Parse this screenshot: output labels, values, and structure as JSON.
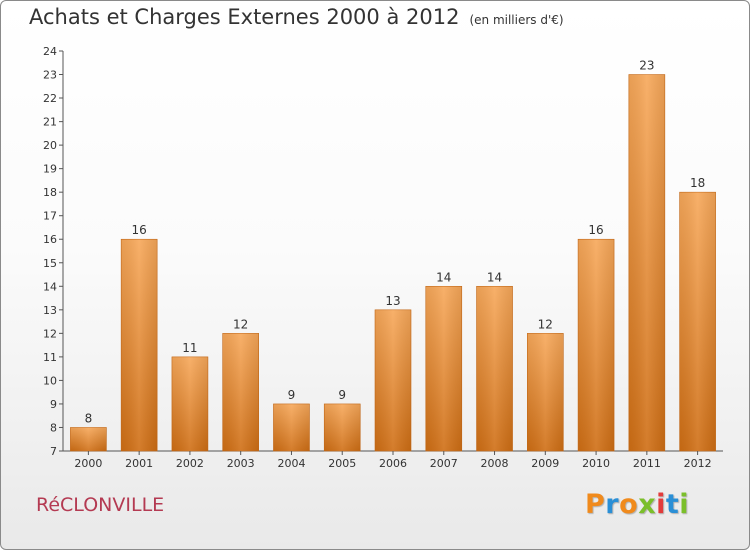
{
  "title": {
    "main": "Achats et Charges Externes 2000 à 2012",
    "unit": "(en milliers d'€)"
  },
  "footer": {
    "city": "RéCLONVILLE",
    "brand": "Proxiti",
    "brand_colors": [
      "#f08a1c",
      "#2a8fd6",
      "#f08a1c",
      "#7bbf2a",
      "#e23b3b",
      "#2a8fd6",
      "#7bbf2a"
    ]
  },
  "colors": {
    "bar_top": "#f7a85a",
    "bar_bottom": "#cf6e14",
    "axis": "#555555",
    "text": "#333333"
  },
  "chart_data": {
    "type": "bar",
    "title": "Achats et Charges Externes 2000 à 2012",
    "categories": [
      "2000",
      "2001",
      "2002",
      "2003",
      "2004",
      "2005",
      "2006",
      "2007",
      "2008",
      "2009",
      "2010",
      "2011",
      "2012"
    ],
    "values": [
      8,
      16,
      11,
      12,
      9,
      9,
      13,
      14,
      14,
      12,
      16,
      23,
      18
    ],
    "ylim": [
      7,
      24
    ],
    "yticks": [
      7,
      8,
      9,
      10,
      11,
      12,
      13,
      14,
      15,
      16,
      17,
      18,
      19,
      20,
      21,
      22,
      23,
      24
    ],
    "grid": false,
    "data_labels": true
  }
}
